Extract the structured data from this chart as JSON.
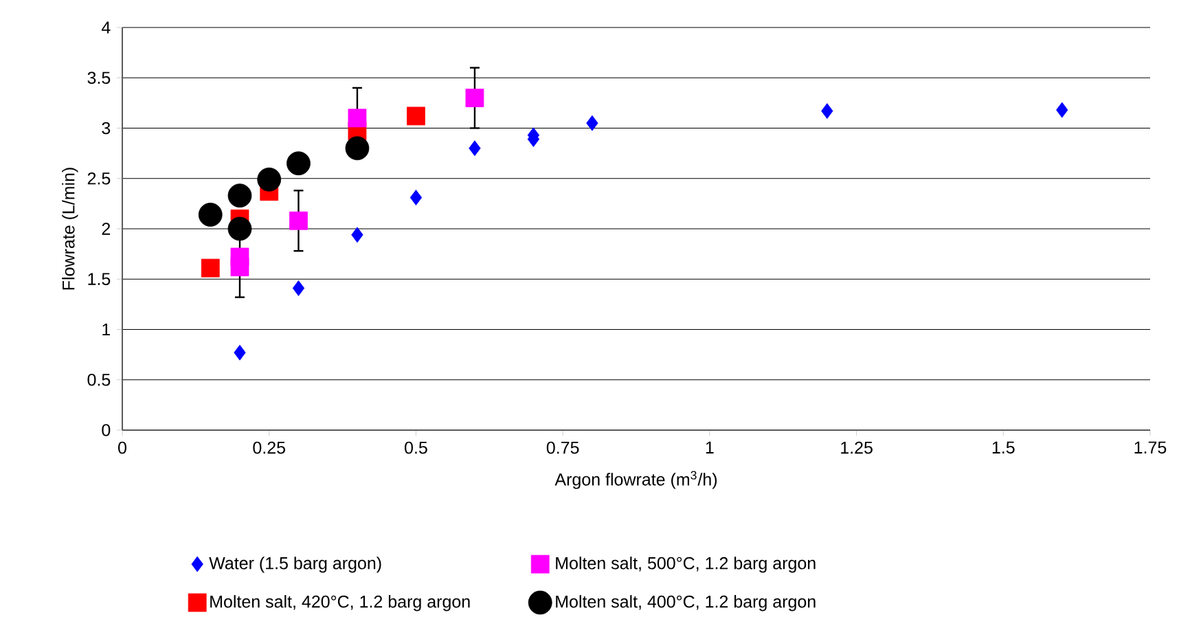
{
  "chart_data": {
    "type": "scatter",
    "xlabel": "Argon flowrate  (m$^{3}$/h)",
    "ylabel": "Flowrate (L/min)",
    "xlim": [
      0,
      1.75
    ],
    "xticks": [
      0,
      0.25,
      0.5,
      0.75,
      1,
      1.25,
      1.5,
      1.75
    ],
    "ylim": [
      0,
      4
    ],
    "yticks": [
      0,
      0.5,
      1,
      1.5,
      2,
      2.5,
      3,
      3.5,
      4
    ],
    "grid": "y",
    "legend": "bottom",
    "series": [
      {
        "name": "Water (1.5 barg argon)",
        "color": "#0000ff",
        "marker": "diamond",
        "x": [
          0.2,
          0.3,
          0.4,
          0.5,
          0.6,
          0.7,
          0.7,
          0.8,
          1.2,
          1.6
        ],
        "values": [
          0.77,
          1.41,
          1.94,
          2.31,
          2.8,
          2.93,
          2.89,
          3.05,
          3.17,
          3.18
        ]
      },
      {
        "name": "Molten salt, 420°C, 1.2 barg argon",
        "color": "#ff0000",
        "marker": "square",
        "x": [
          0.15,
          0.2,
          0.25,
          0.3,
          0.4,
          0.5
        ],
        "values": [
          1.61,
          2.1,
          2.37,
          null,
          2.97,
          3.12
        ]
      },
      {
        "name": "Molten salt, 500°C, 1.2 barg argon",
        "color": "#ff00ff",
        "marker": "square",
        "x": [
          0.2,
          0.2,
          0.3,
          0.4,
          0.6
        ],
        "values": [
          1.72,
          1.62,
          2.08,
          3.1,
          3.3
        ],
        "errors": [
          null,
          0.3,
          0.3,
          0.3,
          0.3
        ]
      },
      {
        "name": "Molten salt, 400°C, 1.2 barg argon",
        "color": "#000000",
        "marker": "circle",
        "x": [
          0.15,
          0.2,
          0.2,
          0.25,
          0.3,
          0.4
        ],
        "values": [
          2.14,
          2.33,
          2.0,
          2.49,
          2.65,
          2.8
        ]
      }
    ]
  }
}
